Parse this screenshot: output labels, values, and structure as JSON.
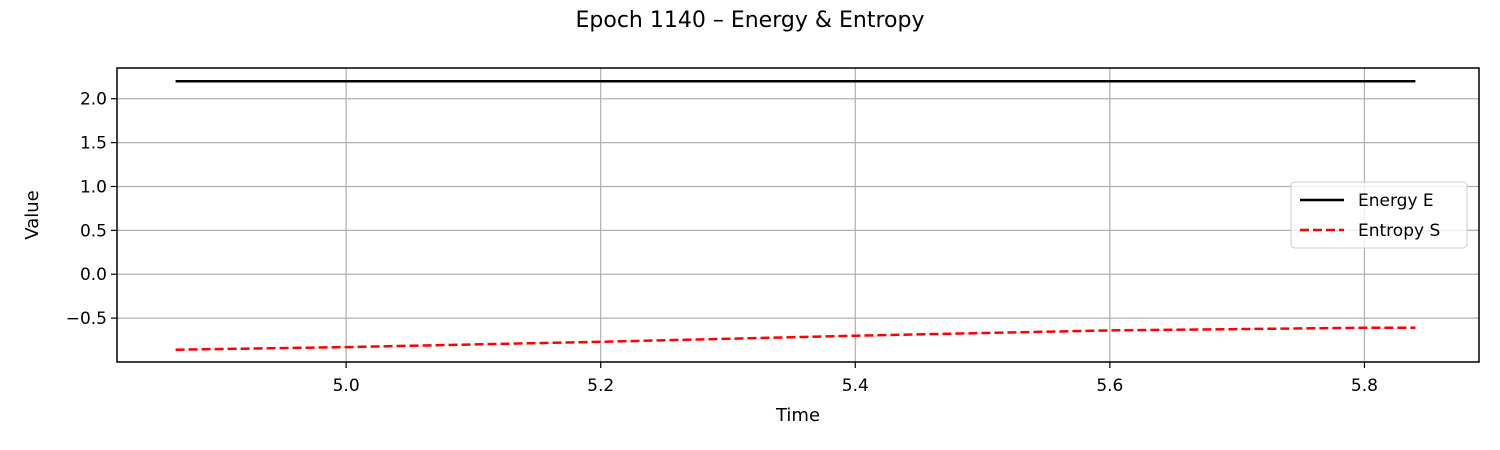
{
  "chart_data": {
    "type": "line",
    "title": "Epoch 1140 – Energy & Entropy",
    "xlabel": "Time",
    "ylabel": "Value",
    "xlim": [
      4.82,
      5.89
    ],
    "ylim": [
      -1.0,
      2.35
    ],
    "xticks": [
      5.0,
      5.2,
      5.4,
      5.6,
      5.8
    ],
    "xtick_labels": [
      "5.0",
      "5.2",
      "5.4",
      "5.6",
      "5.8"
    ],
    "yticks": [
      -0.5,
      0.0,
      0.5,
      1.0,
      1.5,
      2.0
    ],
    "ytick_labels": [
      "−0.5",
      "0.0",
      "0.5",
      "1.0",
      "1.5",
      "2.0"
    ],
    "grid": true,
    "legend_position": "center-right",
    "series": [
      {
        "name": "Energy E",
        "color": "#000000",
        "dash": "solid",
        "x": [
          4.866,
          5.0,
          5.2,
          5.4,
          5.6,
          5.8,
          5.84
        ],
        "y": [
          2.2,
          2.2,
          2.2,
          2.2,
          2.2,
          2.2,
          2.2
        ]
      },
      {
        "name": "Entropy S",
        "color": "#ff0000",
        "dash": "dashed",
        "x": [
          4.866,
          5.0,
          5.2,
          5.4,
          5.6,
          5.8,
          5.84
        ],
        "y": [
          -0.86,
          -0.83,
          -0.77,
          -0.7,
          -0.64,
          -0.61,
          -0.61
        ]
      }
    ]
  }
}
